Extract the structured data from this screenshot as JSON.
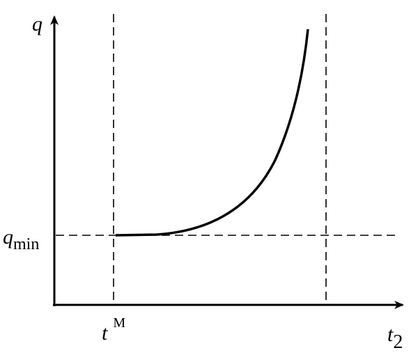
{
  "axes": {
    "y_label": "q",
    "x_label": {
      "base": "t",
      "subscript": "2"
    }
  },
  "reference_lines": {
    "horizontal": {
      "base": "q",
      "subscript": "min"
    },
    "vertical": {
      "base": "t",
      "superscript": "M"
    }
  }
}
